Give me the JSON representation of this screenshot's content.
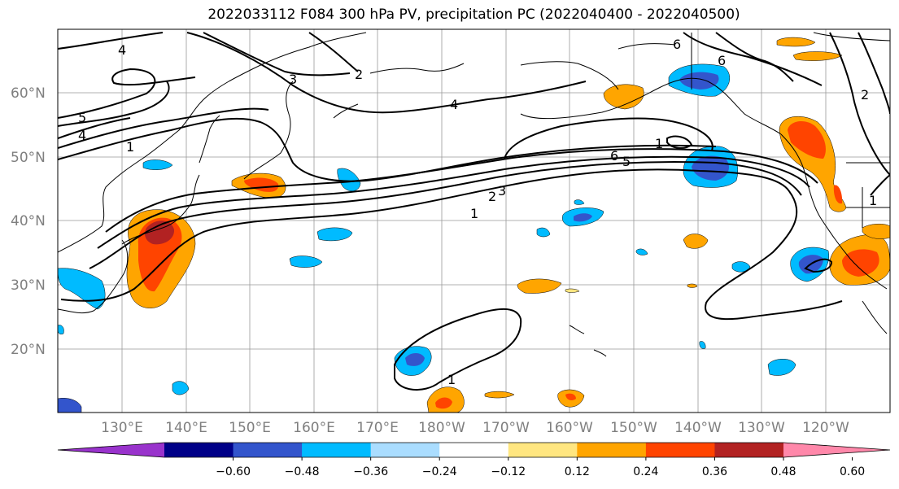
{
  "title": "2022033112 F084 300 hPa PV, precipitation PC (2022040400 - 2022040500)",
  "lat_labels": [
    "60°N",
    "50°N",
    "40°N",
    "30°N",
    "20°N"
  ],
  "lon_labels": [
    "130°E",
    "140°E",
    "150°E",
    "160°E",
    "170°E",
    "180°W",
    "170°W",
    "160°W",
    "150°W",
    "140°W",
    "130°W",
    "120°W"
  ],
  "pv_contour_labels": [
    "4",
    "3",
    "2",
    "4",
    "5",
    "4",
    "1",
    "6",
    "6",
    "2",
    "6",
    "5",
    "1",
    "2",
    "3",
    "1",
    "1",
    "1"
  ],
  "colorbar": {
    "colors": [
      "#9933cc",
      "#000088",
      "#3355cc",
      "#00bbff",
      "#aaddff",
      "#ffffff",
      "#ffe680",
      "#ffa500",
      "#ff4400",
      "#b22222",
      "#ff88aa"
    ],
    "tick_labels": [
      "-0.60",
      "-0.48",
      "-0.36",
      "-0.24",
      "-0.12",
      "0.12",
      "0.24",
      "0.36",
      "0.48",
      "0.60"
    ]
  },
  "colors": {
    "axis_label": "#7f7f7f",
    "grid": "#999999",
    "coast": "#000000"
  }
}
